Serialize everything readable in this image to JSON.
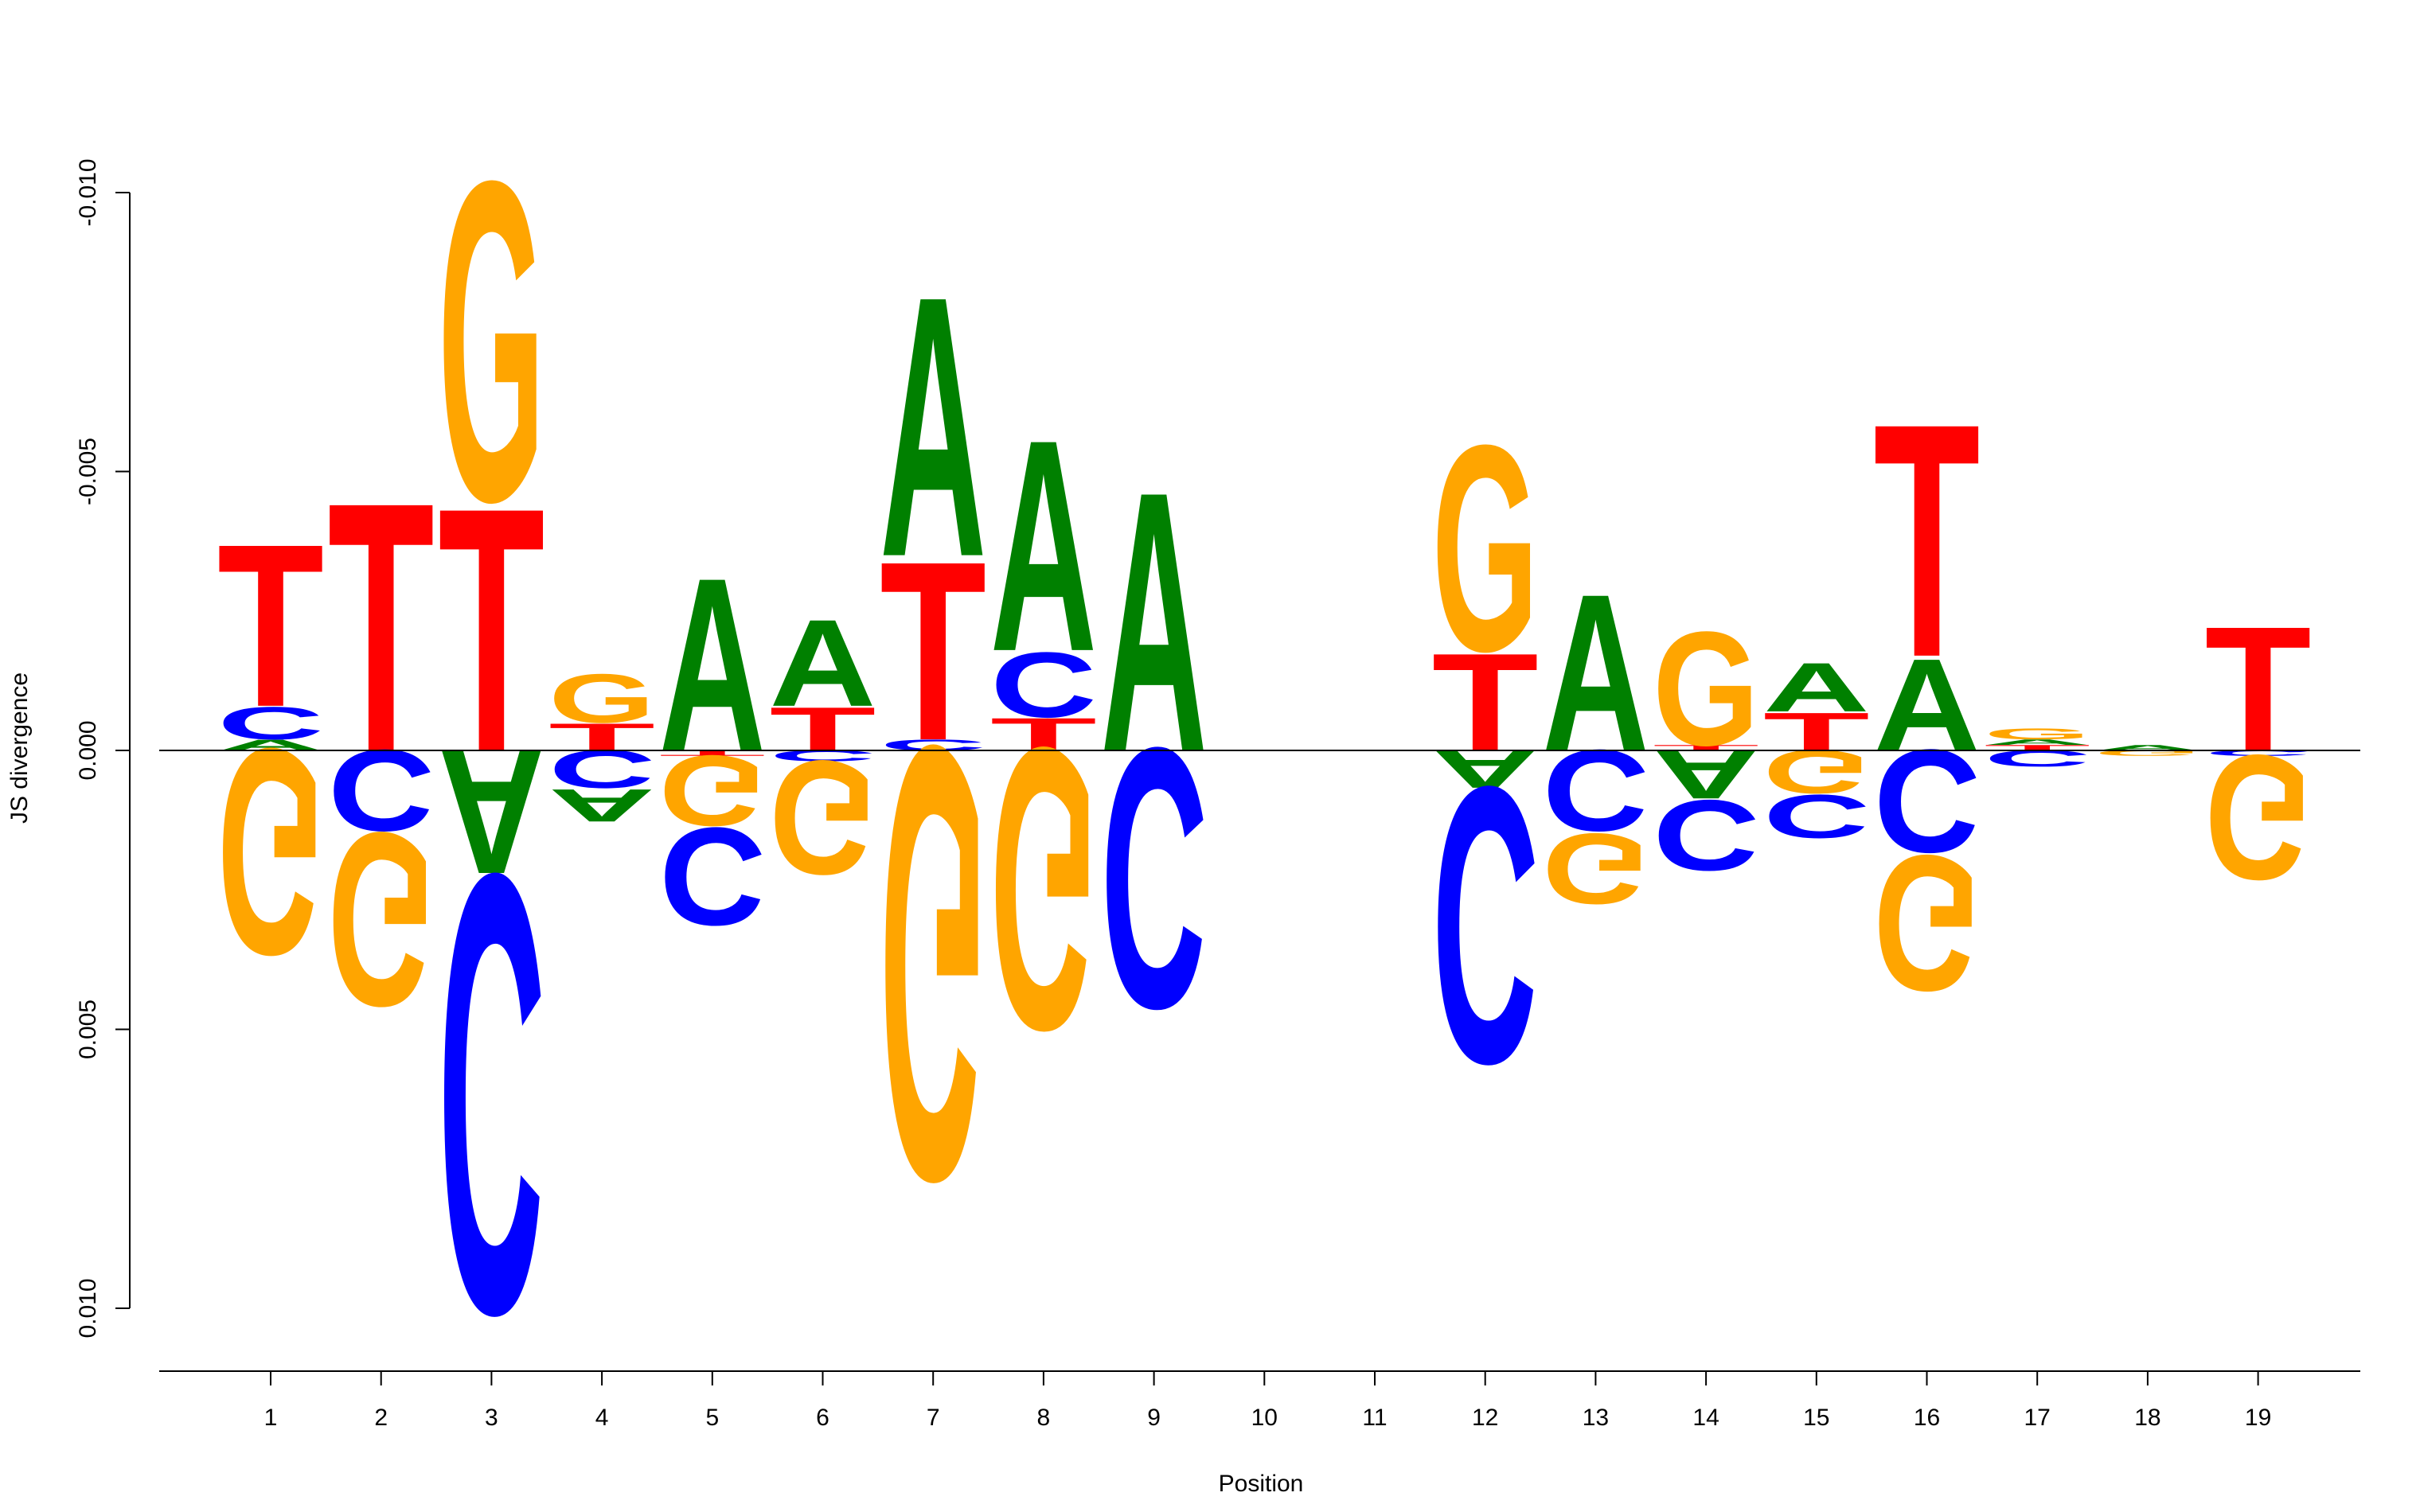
{
  "chart_data": {
    "type": "sequence-logo",
    "xlabel": "Position",
    "ylabel": "JS divergence",
    "ylim": [
      -0.01,
      0.01
    ],
    "y_ticks": [
      "-0.010",
      "-0.005",
      "0.000",
      "0.005",
      "0.010"
    ],
    "y_tick_values": [
      -0.01,
      -0.005,
      0.0,
      0.005,
      0.01
    ],
    "categories": [
      "1",
      "2",
      "3",
      "4",
      "5",
      "6",
      "7",
      "8",
      "9",
      "10",
      "11",
      "12",
      "13",
      "14",
      "15",
      "16",
      "17",
      "18",
      "19"
    ],
    "colors": {
      "A": "#008000",
      "C": "#0000ff",
      "G": "#ffa500",
      "T": "#ff0000"
    },
    "positions": [
      {
        "position": 1,
        "above": [
          [
            "A",
            0.0002
          ],
          [
            "C",
            0.0006
          ],
          [
            "T",
            0.003
          ]
        ],
        "below": [
          [
            "G",
            0.0038
          ]
        ]
      },
      {
        "position": 2,
        "above": [
          [
            "T",
            0.0046
          ]
        ],
        "below": [
          [
            "C",
            0.0015
          ],
          [
            "G",
            0.0032
          ]
        ]
      },
      {
        "position": 3,
        "above": [
          [
            "T",
            0.0045
          ],
          [
            "G",
            0.0059
          ]
        ],
        "below": [
          [
            "A",
            0.0023
          ],
          [
            "C",
            0.0081
          ]
        ]
      },
      {
        "position": 4,
        "above": [
          [
            "T",
            0.0005
          ],
          [
            "G",
            0.0009
          ]
        ],
        "below": [
          [
            "C",
            0.0007
          ],
          [
            "A",
            0.0006
          ]
        ]
      },
      {
        "position": 5,
        "above": [
          [
            "A",
            0.0032
          ]
        ],
        "below": [
          [
            "T",
            0.0001
          ],
          [
            "G",
            0.0013
          ],
          [
            "C",
            0.0018
          ]
        ]
      },
      {
        "position": 6,
        "above": [
          [
            "T",
            0.0008
          ],
          [
            "A",
            0.0016
          ]
        ],
        "below": [
          [
            "C",
            0.0002
          ],
          [
            "G",
            0.0021
          ]
        ]
      },
      {
        "position": 7,
        "above": [
          [
            "C",
            0.0002
          ],
          [
            "T",
            0.0033
          ],
          [
            "A",
            0.0048
          ]
        ],
        "below": [
          [
            "G",
            0.008
          ]
        ]
      },
      {
        "position": 8,
        "above": [
          [
            "T",
            0.0006
          ],
          [
            "C",
            0.0012
          ],
          [
            "A",
            0.0039
          ]
        ],
        "below": [
          [
            "G",
            0.0052
          ]
        ]
      },
      {
        "position": 9,
        "above": [
          [
            "A",
            0.0048
          ]
        ],
        "below": [
          [
            "C",
            0.0048
          ]
        ]
      },
      {
        "position": 10,
        "above": [],
        "below": []
      },
      {
        "position": 11,
        "above": [],
        "below": []
      },
      {
        "position": 12,
        "above": [
          [
            "T",
            0.0018
          ],
          [
            "G",
            0.0038
          ]
        ],
        "below": [
          [
            "A",
            0.0007
          ],
          [
            "C",
            0.0051
          ]
        ]
      },
      {
        "position": 13,
        "above": [
          [
            "A",
            0.0029
          ]
        ],
        "below": [
          [
            "C",
            0.0015
          ],
          [
            "G",
            0.0013
          ]
        ]
      },
      {
        "position": 14,
        "above": [
          [
            "T",
            0.0001
          ],
          [
            "G",
            0.0021
          ]
        ],
        "below": [
          [
            "A",
            0.0009
          ],
          [
            "C",
            0.0013
          ]
        ]
      },
      {
        "position": 15,
        "above": [
          [
            "T",
            0.0007
          ],
          [
            "A",
            0.0009
          ]
        ],
        "below": [
          [
            "G",
            0.0008
          ],
          [
            "C",
            0.0008
          ]
        ]
      },
      {
        "position": 16,
        "above": [
          [
            "A",
            0.0017
          ],
          [
            "T",
            0.0043
          ]
        ],
        "below": [
          [
            "C",
            0.0019
          ],
          [
            "G",
            0.0025
          ]
        ]
      },
      {
        "position": 17,
        "above": [
          [
            "T",
            0.0001
          ],
          [
            "A",
            0.0001
          ],
          [
            "G",
            0.0002
          ]
        ],
        "below": [
          [
            "C",
            0.0003
          ]
        ]
      },
      {
        "position": 18,
        "above": [
          [
            "A",
            0.0001
          ]
        ],
        "below": [
          [
            "G",
            0.0001
          ]
        ]
      },
      {
        "position": 19,
        "above": [
          [
            "T",
            0.0023
          ]
        ],
        "below": [
          [
            "C",
            0.0001
          ],
          [
            "G",
            0.0023
          ]
        ]
      }
    ]
  }
}
